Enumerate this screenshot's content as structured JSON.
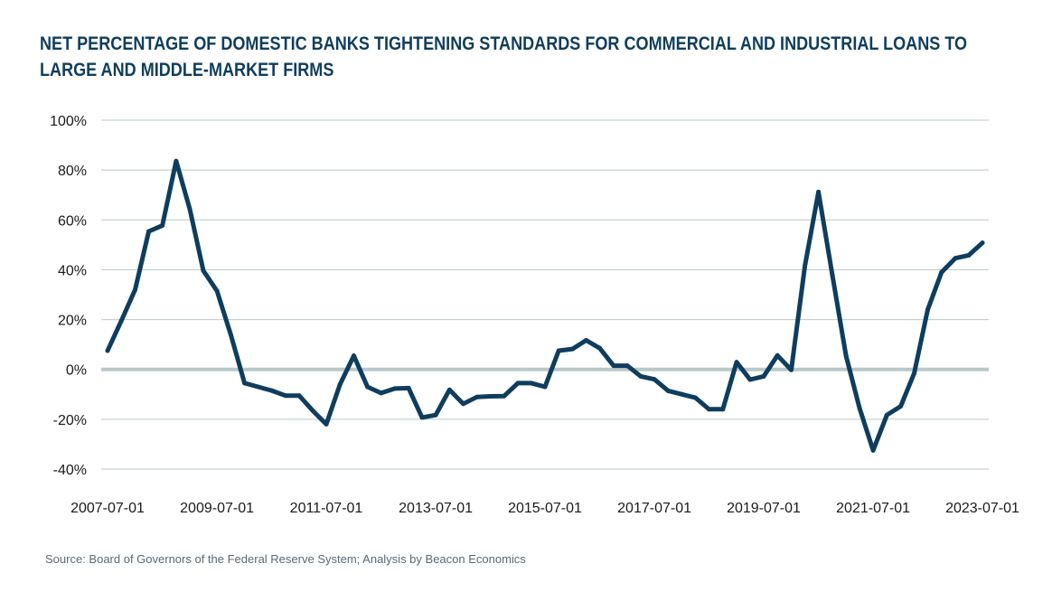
{
  "title": "NET PERCENTAGE OF DOMESTIC BANKS TIGHTENING STANDARDS FOR COMMERCIAL AND INDUSTRIAL LOANS TO LARGE AND MIDDLE-MARKET FIRMS",
  "source": "Source: Board of Governors of the Federal Reserve System; Analysis by Beacon Economics",
  "colors": {
    "title": "#0f3d5e",
    "line": "#0f3d5e",
    "grid": "#b9c8c8",
    "zero_line": "#b9c8c8"
  },
  "chart_data": {
    "type": "line",
    "title": "NET PERCENTAGE OF DOMESTIC BANKS TIGHTENING STANDARDS FOR COMMERCIAL AND INDUSTRIAL LOANS TO LARGE AND MIDDLE-MARKET FIRMS",
    "xlabel": "",
    "ylabel": "",
    "ylim": [
      -40,
      100
    ],
    "yticks": [
      -40,
      -20,
      0,
      20,
      40,
      60,
      80,
      100
    ],
    "ytick_labels": [
      "-40%",
      "-20%",
      "0%",
      "20%",
      "40%",
      "60%",
      "80%",
      "100%"
    ],
    "xtick_labels": [
      "2007-07-01",
      "2009-07-01",
      "2011-07-01",
      "2013-07-01",
      "2015-07-01",
      "2017-07-01",
      "2019-07-01",
      "2021-07-01",
      "2023-07-01"
    ],
    "grid": true,
    "series": [
      {
        "x": [
          "2007-07-01",
          "2007-10-01",
          "2008-01-01",
          "2008-04-01",
          "2008-07-01",
          "2008-10-01",
          "2009-01-01",
          "2009-04-01",
          "2009-07-01",
          "2009-10-01",
          "2010-01-01",
          "2010-04-01",
          "2010-07-01",
          "2010-10-01",
          "2011-01-01",
          "2011-04-01",
          "2011-07-01",
          "2011-10-01",
          "2012-01-01",
          "2012-04-01",
          "2012-07-01",
          "2012-10-01",
          "2013-01-01",
          "2013-04-01",
          "2013-07-01",
          "2013-10-01",
          "2014-01-01",
          "2014-04-01",
          "2014-07-01",
          "2014-10-01",
          "2015-01-01",
          "2015-04-01",
          "2015-07-01",
          "2015-10-01",
          "2016-01-01",
          "2016-04-01",
          "2016-07-01",
          "2016-10-01",
          "2017-01-01",
          "2017-04-01",
          "2017-07-01",
          "2017-10-01",
          "2018-01-01",
          "2018-04-01",
          "2018-07-01",
          "2018-10-01",
          "2019-01-01",
          "2019-04-01",
          "2019-07-01",
          "2019-10-01",
          "2020-01-01",
          "2020-04-01",
          "2020-07-01",
          "2020-10-01",
          "2021-01-01",
          "2021-04-01",
          "2021-07-01",
          "2021-10-01",
          "2022-01-01",
          "2022-04-01",
          "2022-07-01",
          "2022-10-01",
          "2023-01-01",
          "2023-04-01",
          "2023-07-01"
        ],
        "values": [
          7.5,
          19.5,
          32.0,
          55.4,
          57.7,
          83.6,
          64.2,
          39.6,
          31.5,
          14.0,
          -5.5,
          -7.0,
          -8.5,
          -10.5,
          -10.5,
          -16.5,
          -22.0,
          -6.0,
          5.5,
          -7.0,
          -9.5,
          -7.7,
          -7.5,
          -19.3,
          -18.3,
          -8.2,
          -13.8,
          -11.1,
          -10.8,
          -10.7,
          -5.5,
          -5.5,
          -7.0,
          7.5,
          8.2,
          11.7,
          8.5,
          1.5,
          1.5,
          -2.8,
          -4.0,
          -8.6,
          -10.0,
          -11.4,
          -16.0,
          -16.0,
          2.9,
          -4.1,
          -2.8,
          5.6,
          -0.2,
          41.5,
          71.2,
          38.0,
          5.5,
          -15.5,
          -32.5,
          -18.3,
          -14.8,
          -1.6,
          24.0,
          39.0,
          44.6,
          45.8,
          50.8
        ]
      }
    ]
  }
}
